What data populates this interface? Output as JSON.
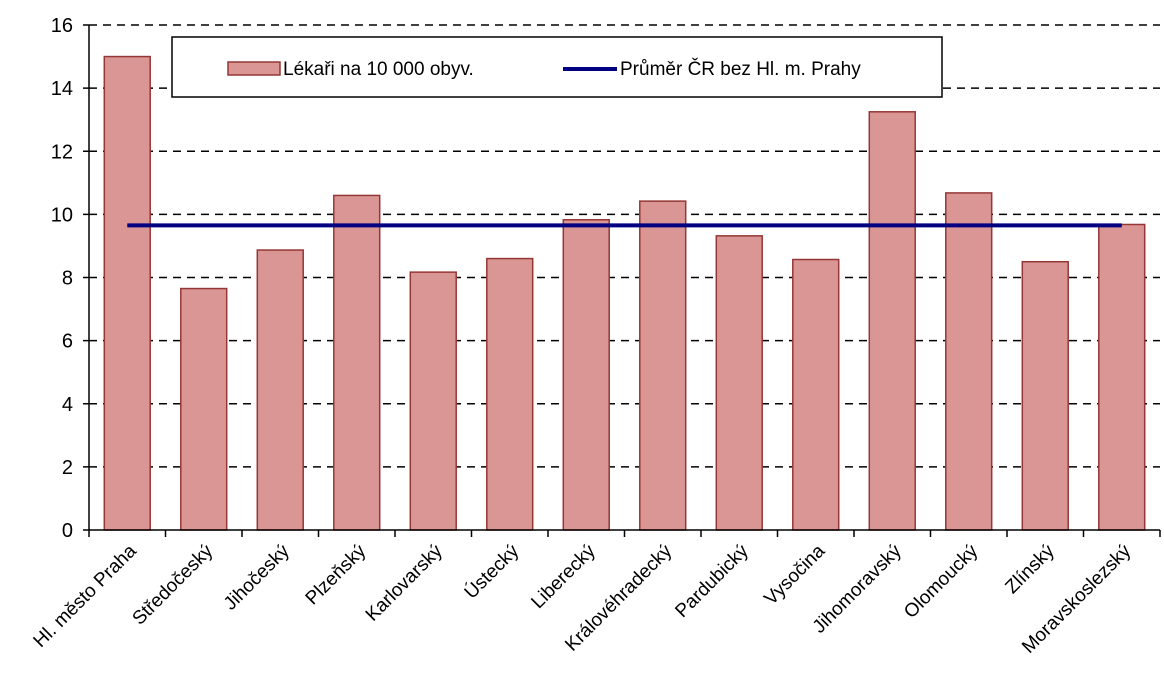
{
  "chart_data": {
    "type": "bar",
    "categories": [
      "Hl. město Praha",
      "Středočeský",
      "Jihočeský",
      "Plzeňský",
      "Karlovarský",
      "Ústecký",
      "Liberecký",
      "Královéhradecký",
      "Pardubický",
      "Vysočina",
      "Jihomoravský",
      "Olomoucký",
      "Zlínský",
      "Moravskoslezský"
    ],
    "series": [
      {
        "name": "Lékaři na 10 000 obyv.",
        "type": "bar",
        "color": "#d99694",
        "edge_color": "#953735",
        "values": [
          15.0,
          7.65,
          8.87,
          10.6,
          8.17,
          8.6,
          9.83,
          10.42,
          9.32,
          8.57,
          13.25,
          10.68,
          8.5,
          9.68
        ]
      },
      {
        "name": "Průměr ČR bez Hl. m. Prahy",
        "type": "line",
        "color": "#000080",
        "value": 9.65
      }
    ],
    "xlabel": "",
    "ylabel": "",
    "ylim": [
      0,
      16
    ],
    "yticks": [
      0,
      2,
      4,
      6,
      8,
      10,
      12,
      14,
      16
    ],
    "grid": "horizontal dashed",
    "legend_position": "top"
  }
}
